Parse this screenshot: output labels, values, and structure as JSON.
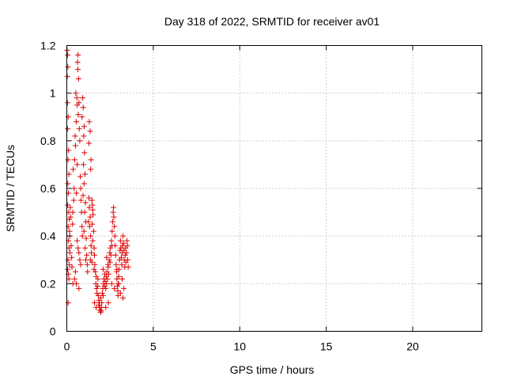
{
  "chart_data": {
    "type": "scatter",
    "title": "Day 318 of 2022, SRMTID for receiver av01",
    "xlabel": "GPS time / hours",
    "ylabel": "SRMTID / TECUs",
    "xlim": [
      0,
      24
    ],
    "ylim": [
      0,
      1.2
    ],
    "xticks": [
      0,
      5,
      10,
      15,
      20
    ],
    "xtick_labels": [
      "0",
      "5",
      "10",
      "15",
      "20"
    ],
    "yticks": [
      0,
      0.2,
      0.4,
      0.6,
      0.8,
      1.0,
      1.2
    ],
    "ytick_labels": [
      "0",
      "0.2",
      "0.4",
      "0.6",
      "0.8",
      "1",
      "1.2"
    ],
    "grid": true,
    "marker": "+",
    "color": "#dd0000",
    "series": [
      {
        "name": "SRMTID",
        "points": [
          [
            0.02,
            1.18
          ],
          [
            0.05,
            1.16
          ],
          [
            0.03,
            1.07
          ],
          [
            0.06,
            1.11
          ],
          [
            0.04,
            0.96
          ],
          [
            0.08,
            0.9
          ],
          [
            0.05,
            0.85
          ],
          [
            0.1,
            0.76
          ],
          [
            0.07,
            0.72
          ],
          [
            0.12,
            0.66
          ],
          [
            0.06,
            0.62
          ],
          [
            0.09,
            0.58
          ],
          [
            0.05,
            0.53
          ],
          [
            0.11,
            0.5
          ],
          [
            0.14,
            0.47
          ],
          [
            0.08,
            0.44
          ],
          [
            0.16,
            0.42
          ],
          [
            0.1,
            0.38
          ],
          [
            0.13,
            0.35
          ],
          [
            0.18,
            0.33
          ],
          [
            0.07,
            0.3
          ],
          [
            0.15,
            0.28
          ],
          [
            0.2,
            0.52
          ],
          [
            0.22,
            0.48
          ],
          [
            0.17,
            0.4
          ],
          [
            0.05,
            0.26
          ],
          [
            0.09,
            0.24
          ],
          [
            0.12,
            0.22
          ],
          [
            0.08,
            0.12
          ],
          [
            0.25,
            0.36
          ],
          [
            0.28,
            0.31
          ],
          [
            0.3,
            0.27
          ],
          [
            0.33,
            0.45
          ],
          [
            0.35,
            0.5
          ],
          [
            0.4,
            0.55
          ],
          [
            0.42,
            0.6
          ],
          [
            0.37,
            0.68
          ],
          [
            0.45,
            0.72
          ],
          [
            0.5,
            0.78
          ],
          [
            0.48,
            0.82
          ],
          [
            0.55,
            0.88
          ],
          [
            0.6,
            0.95
          ],
          [
            0.52,
            1.0
          ],
          [
            0.58,
            0.98
          ],
          [
            0.65,
            1.16
          ],
          [
            0.62,
            1.13
          ],
          [
            0.68,
            1.06
          ],
          [
            0.64,
            1.1
          ],
          [
            0.7,
            0.96
          ],
          [
            0.66,
            0.91
          ],
          [
            0.72,
            0.85
          ],
          [
            0.75,
            0.8
          ],
          [
            0.6,
            0.7
          ],
          [
            0.78,
            0.65
          ],
          [
            0.8,
            0.6
          ],
          [
            0.55,
            0.58
          ],
          [
            0.82,
            0.55
          ],
          [
            0.85,
            0.5
          ],
          [
            0.88,
            0.44
          ],
          [
            0.9,
            0.4
          ],
          [
            0.6,
            0.38
          ],
          [
            0.65,
            0.35
          ],
          [
            0.7,
            0.33
          ],
          [
            0.75,
            0.3
          ],
          [
            0.8,
            0.28
          ],
          [
            0.5,
            0.25
          ],
          [
            0.45,
            0.22
          ],
          [
            0.55,
            0.2
          ],
          [
            0.7,
            0.18
          ],
          [
            0.35,
            0.2
          ],
          [
            0.92,
            0.98
          ],
          [
            0.95,
            0.94
          ],
          [
            0.88,
            0.9
          ],
          [
            1.0,
            0.86
          ],
          [
            0.98,
            0.82
          ],
          [
            1.02,
            0.75
          ],
          [
            0.96,
            0.7
          ],
          [
            1.05,
            0.66
          ],
          [
            1.0,
            0.62
          ],
          [
            0.94,
            0.57
          ],
          [
            1.08,
            0.54
          ],
          [
            1.03,
            0.5
          ],
          [
            1.1,
            0.46
          ],
          [
            0.99,
            0.42
          ],
          [
            1.12,
            0.39
          ],
          [
            1.06,
            0.35
          ],
          [
            1.15,
            0.32
          ],
          [
            1.1,
            0.3
          ],
          [
            1.18,
            0.28
          ],
          [
            1.2,
            0.25
          ],
          [
            1.25,
            0.46
          ],
          [
            1.3,
            0.52
          ],
          [
            1.28,
            0.56
          ],
          [
            1.35,
            0.48
          ],
          [
            1.32,
            0.44
          ],
          [
            1.38,
            0.4
          ],
          [
            1.4,
            0.36
          ],
          [
            1.42,
            0.33
          ],
          [
            1.36,
            0.3
          ],
          [
            1.45,
            0.29
          ],
          [
            1.3,
            0.88
          ],
          [
            1.35,
            0.84
          ],
          [
            1.28,
            0.79
          ],
          [
            1.4,
            0.72
          ],
          [
            1.38,
            0.68
          ],
          [
            1.45,
            0.55
          ],
          [
            1.48,
            0.53
          ],
          [
            1.5,
            0.51
          ],
          [
            1.52,
            0.49
          ],
          [
            1.47,
            0.45
          ],
          [
            1.55,
            0.42
          ],
          [
            1.5,
            0.38
          ],
          [
            1.58,
            0.35
          ],
          [
            1.6,
            0.32
          ],
          [
            1.62,
            0.28
          ],
          [
            1.57,
            0.26
          ],
          [
            1.65,
            0.25
          ],
          [
            1.7,
            0.23
          ],
          [
            1.68,
            0.2
          ],
          [
            1.72,
            0.18
          ],
          [
            1.75,
            0.16
          ],
          [
            1.8,
            0.22
          ],
          [
            1.78,
            0.19
          ],
          [
            1.82,
            0.15
          ],
          [
            1.85,
            0.13
          ],
          [
            1.88,
            0.12
          ],
          [
            1.9,
            0.1
          ],
          [
            1.92,
            0.09
          ],
          [
            1.95,
            0.08
          ],
          [
            1.98,
            0.085
          ],
          [
            2.0,
            0.1
          ],
          [
            2.02,
            0.12
          ],
          [
            1.96,
            0.14
          ],
          [
            2.05,
            0.16
          ],
          [
            2.08,
            0.18
          ],
          [
            2.1,
            0.15
          ],
          [
            2.12,
            0.2
          ],
          [
            2.15,
            0.22
          ],
          [
            2.18,
            0.19
          ],
          [
            2.2,
            0.24
          ],
          [
            2.1,
            0.26
          ],
          [
            2.22,
            0.21
          ],
          [
            2.25,
            0.18
          ],
          [
            2.28,
            0.23
          ],
          [
            2.3,
            0.2
          ],
          [
            2.32,
            0.25
          ],
          [
            2.35,
            0.22
          ],
          [
            2.38,
            0.28
          ],
          [
            2.3,
            0.31
          ],
          [
            2.4,
            0.27
          ],
          [
            2.42,
            0.24
          ],
          [
            2.45,
            0.3
          ],
          [
            2.48,
            0.33
          ],
          [
            2.5,
            0.29
          ],
          [
            2.52,
            0.35
          ],
          [
            2.55,
            0.32
          ],
          [
            2.58,
            0.38
          ],
          [
            2.6,
            0.36
          ],
          [
            2.62,
            0.42
          ],
          [
            2.65,
            0.46
          ],
          [
            2.68,
            0.5
          ],
          [
            2.7,
            0.52
          ],
          [
            2.72,
            0.48
          ],
          [
            2.75,
            0.44
          ],
          [
            2.78,
            0.4
          ],
          [
            2.8,
            0.36
          ],
          [
            2.82,
            0.32
          ],
          [
            2.85,
            0.28
          ],
          [
            2.88,
            0.25
          ],
          [
            2.9,
            0.22
          ],
          [
            2.92,
            0.19
          ],
          [
            2.95,
            0.17
          ],
          [
            2.98,
            0.2
          ],
          [
            3.0,
            0.23
          ],
          [
            3.02,
            0.26
          ],
          [
            3.05,
            0.3
          ],
          [
            3.08,
            0.34
          ],
          [
            3.1,
            0.38
          ],
          [
            3.12,
            0.35
          ],
          [
            3.15,
            0.31
          ],
          [
            3.18,
            0.28
          ],
          [
            3.2,
            0.33
          ],
          [
            3.22,
            0.36
          ],
          [
            3.25,
            0.4
          ],
          [
            3.28,
            0.37
          ],
          [
            3.3,
            0.34
          ],
          [
            3.32,
            0.3
          ],
          [
            3.35,
            0.27
          ],
          [
            3.38,
            0.32
          ],
          [
            3.4,
            0.35
          ],
          [
            3.42,
            0.29
          ],
          [
            3.45,
            0.33
          ],
          [
            3.48,
            0.38
          ],
          [
            3.5,
            0.36
          ],
          [
            3.52,
            0.3
          ],
          [
            3.55,
            0.27
          ],
          [
            3.25,
            0.14
          ],
          [
            3.1,
            0.16
          ],
          [
            3.0,
            0.2
          ],
          [
            2.96,
            0.15
          ],
          [
            1.6,
            0.12
          ],
          [
            1.7,
            0.1
          ],
          [
            1.85,
            0.11
          ],
          [
            2.25,
            0.1
          ],
          [
            2.4,
            0.12
          ],
          [
            2.6,
            0.2
          ],
          [
            2.75,
            0.18
          ],
          [
            2.9,
            0.26
          ],
          [
            3.2,
            0.22
          ],
          [
            3.3,
            0.18
          ]
        ]
      }
    ]
  }
}
